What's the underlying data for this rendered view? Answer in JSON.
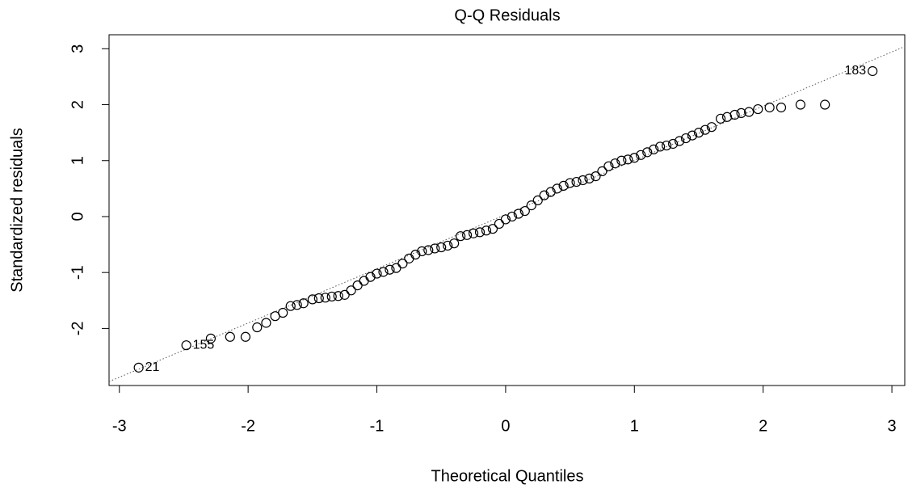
{
  "chart_data": {
    "type": "scatter",
    "title": "Q-Q Residuals",
    "x_label": "Theoretical Quantiles",
    "y_label": "Standardized residuals",
    "xlim": [
      -3.08,
      3.1
    ],
    "ylim": [
      -3.02,
      3.25
    ],
    "xticks": [
      -3,
      -2,
      -1,
      0,
      1,
      2,
      3
    ],
    "yticks": [
      -2,
      -1,
      0,
      1,
      2,
      3
    ],
    "color": "#000000",
    "reference_line": {
      "x": [
        -3.08,
        3.1
      ],
      "y": [
        -2.95,
        3.04
      ]
    },
    "x": [
      -2.85,
      -2.48,
      -2.29,
      -2.14,
      -2.02,
      -1.93,
      -1.86,
      -1.79,
      -1.73,
      -1.67,
      -1.62,
      -1.57,
      -1.5,
      -1.45,
      -1.4,
      -1.35,
      -1.3,
      -1.25,
      -1.2,
      -1.15,
      -1.1,
      -1.05,
      -1.0,
      -0.95,
      -0.9,
      -0.85,
      -0.8,
      -0.75,
      -0.7,
      -0.65,
      -0.6,
      -0.55,
      -0.5,
      -0.45,
      -0.4,
      -0.35,
      -0.3,
      -0.25,
      -0.2,
      -0.15,
      -0.1,
      -0.05,
      0,
      0.05,
      0.1,
      0.15,
      0.2,
      0.25,
      0.3,
      0.35,
      0.4,
      0.45,
      0.5,
      0.55,
      0.6,
      0.65,
      0.7,
      0.75,
      0.8,
      0.85,
      0.9,
      0.95,
      1.0,
      1.05,
      1.1,
      1.15,
      1.2,
      1.25,
      1.3,
      1.35,
      1.4,
      1.45,
      1.5,
      1.55,
      1.6,
      1.67,
      1.72,
      1.78,
      1.83,
      1.89,
      1.96,
      2.05,
      2.14,
      2.29,
      2.48,
      2.85
    ],
    "values": [
      -2.7,
      -2.3,
      -2.18,
      -2.15,
      -2.15,
      -1.98,
      -1.9,
      -1.78,
      -1.72,
      -1.6,
      -1.58,
      -1.55,
      -1.48,
      -1.46,
      -1.45,
      -1.43,
      -1.42,
      -1.4,
      -1.32,
      -1.23,
      -1.15,
      -1.08,
      -1.02,
      -0.99,
      -0.95,
      -0.92,
      -0.84,
      -0.75,
      -0.68,
      -0.62,
      -0.6,
      -0.57,
      -0.55,
      -0.52,
      -0.48,
      -0.35,
      -0.33,
      -0.3,
      -0.28,
      -0.25,
      -0.22,
      -0.13,
      -0.05,
      0,
      0.05,
      0.1,
      0.2,
      0.29,
      0.38,
      0.44,
      0.5,
      0.55,
      0.6,
      0.62,
      0.65,
      0.68,
      0.72,
      0.81,
      0.9,
      0.95,
      1.0,
      1.02,
      1.05,
      1.1,
      1.15,
      1.2,
      1.25,
      1.27,
      1.3,
      1.35,
      1.4,
      1.45,
      1.5,
      1.55,
      1.6,
      1.75,
      1.78,
      1.82,
      1.85,
      1.87,
      1.92,
      1.95,
      1.95,
      2.0,
      2.0,
      2.6
    ],
    "annotations": [
      {
        "text": "21",
        "x": -2.85,
        "y": -2.7
      },
      {
        "text": "155",
        "x": -2.48,
        "y": -2.3
      },
      {
        "text": "183",
        "x": 2.85,
        "y": 2.6
      }
    ]
  }
}
